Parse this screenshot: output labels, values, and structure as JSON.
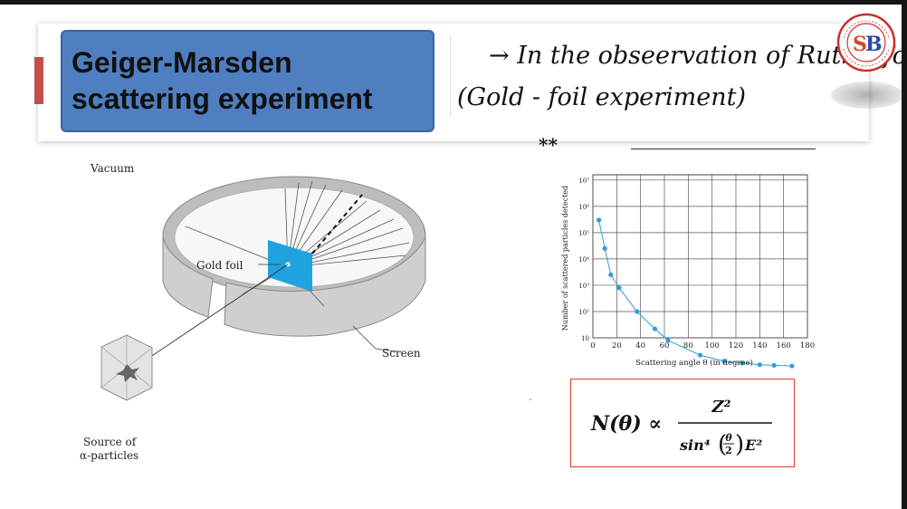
{
  "slide": {
    "title_lines": [
      "Geiger-Marsden",
      "scattering experiment"
    ],
    "note_line1": "→ In the obseervation of Rutherford.",
    "note_line2": "(Gold - foil experiment)",
    "asterisks": "**",
    "logo_letters": "SB",
    "logo_ring_text": "SANKALP BHARAT"
  },
  "diagram": {
    "vacuum_label": "Vacuum",
    "gold_foil_label": "Gold foil",
    "screen_label": "Screen",
    "source_label_line1": "Source of",
    "source_label_line2": "α-particles"
  },
  "chart_data": {
    "type": "scatter",
    "xlabel": "Scattering angle  θ (in degree)",
    "ylabel": "Number of scattered particles detected",
    "x_ticks": [
      "0",
      "20",
      "40",
      "60",
      "80",
      "100",
      "120",
      "140",
      "160",
      "180"
    ],
    "y_ticks": [
      "10",
      "10²",
      "10³",
      "10⁴",
      "10⁵",
      "10⁶",
      "10⁷"
    ],
    "xlim": [
      0,
      180
    ],
    "ylim_log10": [
      1,
      7.2
    ],
    "y_scale": "log",
    "grid": true,
    "points": [
      {
        "x": 5,
        "y": 300000
      },
      {
        "x": 10,
        "y": 25000
      },
      {
        "x": 15,
        "y": 2500
      },
      {
        "x": 22,
        "y": 800
      },
      {
        "x": 37,
        "y": 100
      },
      {
        "x": 52,
        "y": 22
      },
      {
        "x": 63,
        "y": 8
      },
      {
        "x": 90,
        "y": 2.2
      },
      {
        "x": 110,
        "y": 1.3
      },
      {
        "x": 125,
        "y": 1.1
      },
      {
        "x": 140,
        "y": 0.95
      },
      {
        "x": 152,
        "y": 0.9
      },
      {
        "x": 167,
        "y": 0.85
      }
    ],
    "curve_color": "#2e9fd8",
    "point_color": "#2e9fd8"
  },
  "formula": {
    "lhs": "N(θ) ∝",
    "numerator": "Z²",
    "denominator_prefix": "sin⁴",
    "theta": "θ",
    "two": "2",
    "energy": "E²"
  }
}
